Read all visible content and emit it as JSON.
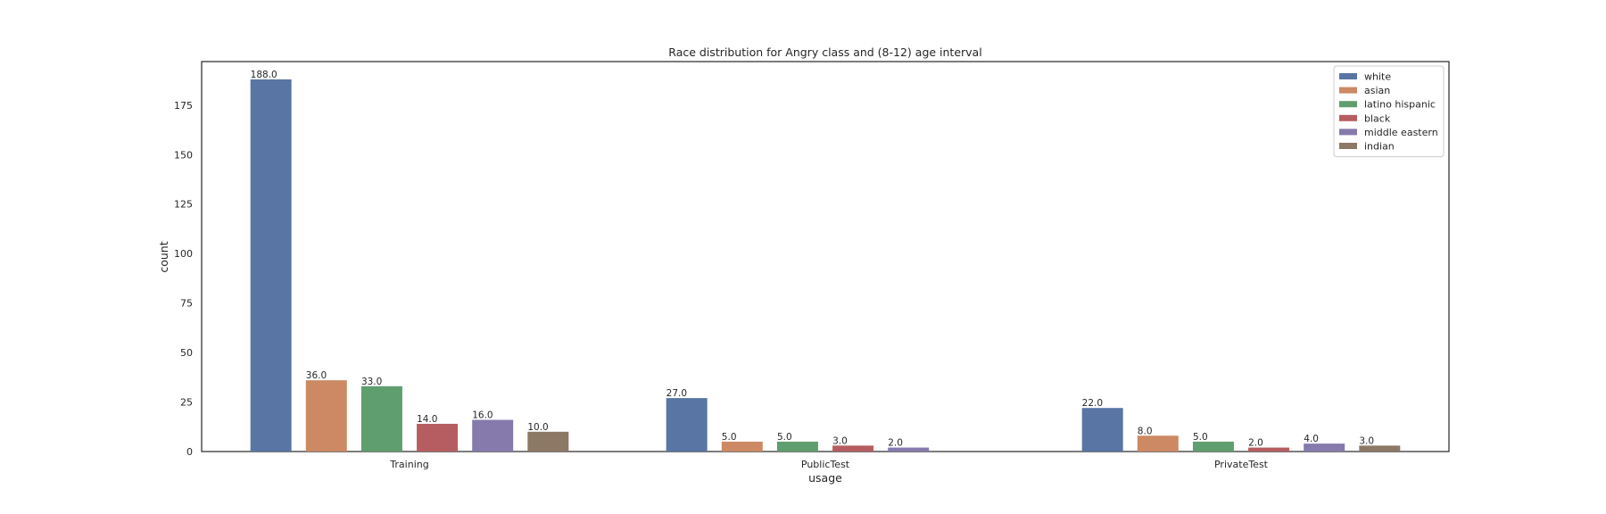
{
  "chart_data": {
    "type": "bar",
    "title": "Race distribution for Angry class and (8-12) age interval",
    "xlabel": "usage",
    "ylabel": "count",
    "categories": [
      "Training",
      "PublicTest",
      "PrivateTest"
    ],
    "ylim": [
      0,
      197
    ],
    "yticks": [
      0,
      25,
      50,
      75,
      100,
      125,
      150,
      175
    ],
    "grid": false,
    "legend_position": "top-right",
    "series": [
      {
        "name": "white",
        "color": "#5875a4",
        "values": [
          188,
          27,
          22
        ],
        "labels": [
          "188.0",
          "27.0",
          "22.0"
        ]
      },
      {
        "name": "asian",
        "color": "#cc8963",
        "values": [
          36,
          5,
          8
        ],
        "labels": [
          "36.0",
          "5.0",
          "8.0"
        ]
      },
      {
        "name": "latino hispanic",
        "color": "#5f9e6e",
        "values": [
          33,
          5,
          5
        ],
        "labels": [
          "33.0",
          "5.0",
          "5.0"
        ]
      },
      {
        "name": "black",
        "color": "#b55d60",
        "values": [
          14,
          3,
          2
        ],
        "labels": [
          "14.0",
          "3.0",
          "2.0"
        ]
      },
      {
        "name": "middle eastern",
        "color": "#857aab",
        "values": [
          16,
          2,
          4
        ],
        "labels": [
          "16.0",
          "2.0",
          "4.0"
        ]
      },
      {
        "name": "indian",
        "color": "#8d7866",
        "values": [
          10,
          null,
          3
        ],
        "labels": [
          "10.0",
          null,
          "3.0"
        ]
      }
    ]
  }
}
